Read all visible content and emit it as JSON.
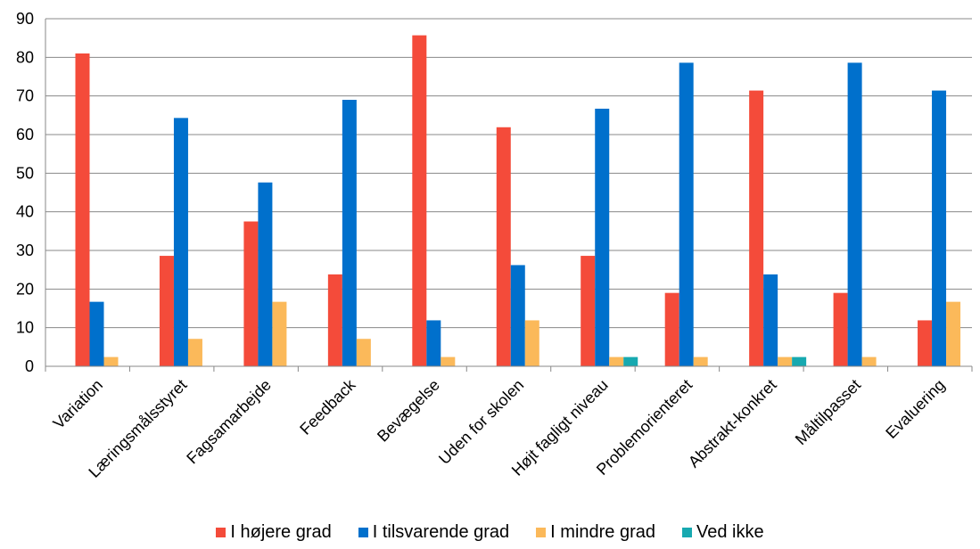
{
  "chart_data": {
    "type": "bar",
    "title": "",
    "xlabel": "",
    "ylabel": "",
    "ylim": [
      0,
      90
    ],
    "yticks": [
      0,
      10,
      20,
      30,
      40,
      50,
      60,
      70,
      80,
      90
    ],
    "grid": true,
    "legend_position": "bottom",
    "categories": [
      "Variation",
      "Læringsmålsstyret",
      "Fagsamarbejde",
      "Feedback",
      "Bevægelse",
      "Uden for skolen",
      "Højt fagligt niveau",
      "Problemorienteret",
      "Abstrakt-konkret",
      "Måltilpasset",
      "Evaluering"
    ],
    "series": [
      {
        "name": "I højere grad",
        "color": "#f44b3a",
        "values": [
          81,
          28.6,
          37.5,
          23.8,
          85.7,
          61.9,
          28.6,
          19,
          71.4,
          19,
          11.9
        ]
      },
      {
        "name": "I tilsvarende grad",
        "color": "#0070cc",
        "values": [
          16.7,
          64.3,
          47.6,
          69,
          11.9,
          26.2,
          66.7,
          78.6,
          23.8,
          78.6,
          71.4
        ]
      },
      {
        "name": "I mindre grad",
        "color": "#fbb95a",
        "values": [
          2.4,
          7.1,
          16.7,
          7.1,
          2.4,
          11.9,
          2.4,
          2.4,
          2.4,
          2.4,
          16.7
        ]
      },
      {
        "name": "Ved ikke",
        "color": "#17a9b0",
        "values": [
          0,
          0,
          0,
          0,
          0,
          0,
          2.4,
          0,
          2.4,
          0,
          0
        ]
      }
    ]
  }
}
